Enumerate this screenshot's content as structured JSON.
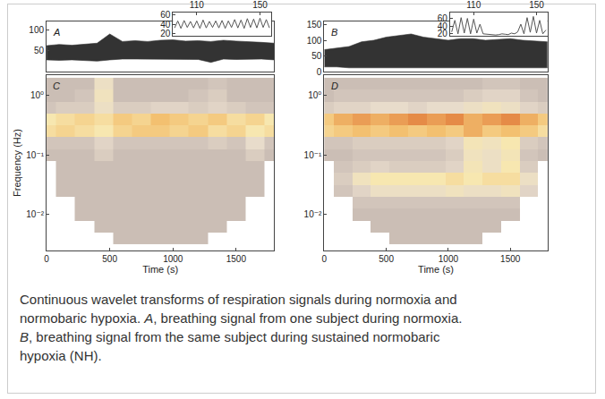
{
  "chart_data": [
    {
      "panel": "A",
      "type": "band",
      "x": [
        0,
        100,
        200,
        300,
        400,
        500,
        600,
        700,
        800,
        900,
        1000,
        1100,
        1200,
        1300,
        1400,
        1500,
        1600,
        1700,
        1800
      ],
      "series": [
        {
          "color": "#333333",
          "values": [
            28,
            27,
            28,
            26,
            25,
            28,
            30,
            30,
            30,
            29,
            30,
            30,
            29,
            22,
            30,
            29,
            30,
            30,
            28
          ]
        },
        {
          "color": "#333333",
          "values": [
            62,
            65,
            63,
            66,
            68,
            90,
            72,
            74,
            72,
            75,
            76,
            73,
            74,
            72,
            75,
            73,
            72,
            70,
            68
          ]
        }
      ],
      "xlim": [
        0,
        1800
      ],
      "ylim": [
        0,
        120
      ],
      "yticks": [
        50,
        100
      ],
      "tick_labels": "y",
      "inset": {
        "type": "line",
        "x": [
          96,
          98,
          100,
          102,
          104,
          106,
          108,
          110,
          112,
          114,
          116,
          118,
          120,
          122,
          124,
          126,
          128,
          130,
          132,
          134,
          136,
          138,
          140,
          142,
          144,
          146,
          148,
          150,
          152,
          154,
          156
        ],
        "values": [
          32,
          47,
          31,
          48,
          33,
          46,
          32,
          47,
          31,
          49,
          32,
          46,
          33,
          47,
          32,
          48,
          31,
          47,
          33,
          50,
          32,
          49,
          31,
          52,
          33,
          51,
          32,
          53,
          33,
          50,
          32
        ],
        "color": "#555555",
        "xlim": [
          95,
          157
        ],
        "ylim": [
          15,
          65
        ],
        "xticks": [
          110,
          150
        ],
        "yticks": [
          20,
          40,
          60
        ]
      }
    },
    {
      "panel": "B",
      "type": "band",
      "x": [
        0,
        100,
        200,
        300,
        400,
        500,
        600,
        700,
        800,
        900,
        1000,
        1100,
        1200,
        1300,
        1400,
        1500,
        1600,
        1700,
        1800
      ],
      "series": [
        {
          "color": "#333333",
          "values": [
            15,
            15,
            12,
            12,
            12,
            10,
            10,
            12,
            10,
            10,
            10,
            12,
            10,
            10,
            10,
            10,
            10,
            12,
            12
          ]
        },
        {
          "color": "#333333",
          "values": [
            70,
            75,
            80,
            95,
            100,
            110,
            115,
            120,
            110,
            105,
            100,
            105,
            105,
            100,
            102,
            105,
            100,
            98,
            95
          ]
        }
      ],
      "xlim": [
        0,
        1800
      ],
      "ylim": [
        0,
        160
      ],
      "yticks": [
        0,
        50,
        100,
        150
      ],
      "tick_labels": "y",
      "inset": {
        "type": "line",
        "x": [
          96,
          98,
          100,
          102,
          104,
          106,
          108,
          110,
          112,
          114,
          116,
          118,
          120,
          122,
          124,
          126,
          128,
          130,
          132,
          134,
          136,
          138,
          140,
          142,
          144,
          146,
          148,
          150,
          152,
          154,
          156
        ],
        "values": [
          25,
          55,
          20,
          62,
          22,
          60,
          20,
          58,
          22,
          45,
          20,
          19,
          18,
          18,
          17,
          18,
          20,
          19,
          18,
          22,
          20,
          25,
          45,
          20,
          62,
          24,
          65,
          22,
          55,
          20,
          30
        ],
        "color": "#555555",
        "xlim": [
          95,
          157
        ],
        "ylim": [
          15,
          75
        ],
        "xticks": [
          110,
          150
        ],
        "yticks": [
          20,
          40,
          60
        ]
      }
    },
    {
      "panel": "C",
      "type": "heatmap",
      "log": "y",
      "x": [
        0,
        150,
        300,
        450,
        600,
        750,
        900,
        1050,
        1200,
        1350,
        1500,
        1650,
        1800
      ],
      "y": [
        1.58,
        1,
        0.63,
        0.4,
        0.25,
        0.16,
        0.1,
        0.063,
        0.04,
        0.025,
        0.016,
        0.01,
        0.0063,
        0.004
      ],
      "z": [
        [
          0.05,
          0.05,
          0.05,
          0.3,
          0.05,
          0.05,
          0.05,
          0.05,
          0.05,
          0.1,
          0.05,
          0.05,
          0.05
        ],
        [
          0.05,
          0.05,
          0.1,
          0.35,
          0.05,
          0.05,
          0.05,
          0.05,
          0.1,
          0.15,
          0.05,
          0.05,
          0.05
        ],
        [
          0.1,
          0.15,
          0.15,
          0.3,
          0.15,
          0.15,
          0.2,
          0.2,
          0.15,
          0.2,
          0.15,
          0.1,
          0.1
        ],
        [
          0.45,
          0.5,
          0.55,
          0.5,
          0.6,
          0.55,
          0.65,
          0.6,
          0.55,
          0.6,
          0.5,
          0.55,
          0.45
        ],
        [
          0.5,
          0.55,
          0.5,
          0.45,
          0.55,
          0.6,
          0.6,
          0.55,
          0.6,
          0.5,
          0.55,
          0.45,
          0.5
        ],
        [
          0.1,
          0.1,
          0.1,
          0.2,
          0.1,
          0.1,
          0.1,
          0.1,
          0.1,
          0.15,
          0.1,
          0.25,
          0.1
        ],
        [
          0.05,
          0.05,
          0.05,
          0.15,
          0.05,
          0.05,
          0.05,
          0.05,
          0.05,
          0.05,
          0.05,
          0.15,
          0.05
        ],
        [
          null,
          0.05,
          0.05,
          0.05,
          0.05,
          0.05,
          0.05,
          0.05,
          0.05,
          0.05,
          0.05,
          0.05,
          null
        ],
        [
          null,
          0.05,
          0.05,
          0.05,
          0.05,
          0.05,
          0.05,
          0.05,
          0.05,
          0.05,
          0.05,
          0.05,
          null
        ],
        [
          null,
          0.05,
          0.05,
          0.05,
          0.05,
          0.05,
          0.05,
          0.05,
          0.05,
          0.05,
          0.05,
          0.05,
          null
        ],
        [
          null,
          null,
          0.05,
          0.05,
          0.05,
          0.05,
          0.05,
          0.05,
          0.05,
          0.05,
          0.05,
          null,
          null
        ],
        [
          null,
          null,
          0.05,
          0.05,
          0.05,
          0.05,
          0.05,
          0.05,
          0.05,
          0.05,
          0.05,
          null,
          null
        ],
        [
          null,
          null,
          null,
          0.05,
          0.05,
          0.05,
          0.05,
          0.05,
          0.05,
          0.05,
          null,
          null,
          null
        ],
        [
          null,
          null,
          null,
          null,
          0.05,
          0.05,
          0.05,
          0.05,
          0.05,
          null,
          null,
          null,
          null
        ]
      ],
      "zlim": [
        0,
        1
      ],
      "xlim": [
        0,
        1800
      ],
      "ylim": [
        0.0025,
        2.2
      ],
      "xticks": [
        0,
        500,
        1000,
        1500
      ],
      "yticks": [
        {
          "value": 1,
          "label": "10⁰"
        },
        {
          "value": 0.1,
          "label": "10⁻¹"
        },
        {
          "value": 0.01,
          "label": "10⁻²"
        }
      ],
      "xlabel": "Time (s)",
      "ylabel": "Frequency (Hz)"
    },
    {
      "panel": "D",
      "type": "heatmap",
      "log": "y",
      "x": [
        0,
        150,
        300,
        450,
        600,
        750,
        900,
        1050,
        1200,
        1350,
        1500,
        1650,
        1800
      ],
      "y": [
        1.58,
        1,
        0.63,
        0.4,
        0.25,
        0.16,
        0.1,
        0.063,
        0.04,
        0.025,
        0.016,
        0.01,
        0.0063,
        0.004
      ],
      "z": [
        [
          0.05,
          0.05,
          0.05,
          0.05,
          0.05,
          0.05,
          0.05,
          0.05,
          0.05,
          0.1,
          0.1,
          0.05,
          0.05
        ],
        [
          0.05,
          0.1,
          0.1,
          0.1,
          0.1,
          0.1,
          0.1,
          0.1,
          0.15,
          0.2,
          0.2,
          0.1,
          0.05
        ],
        [
          0.15,
          0.2,
          0.2,
          0.25,
          0.25,
          0.2,
          0.25,
          0.25,
          0.3,
          0.35,
          0.3,
          0.2,
          0.15
        ],
        [
          0.6,
          0.7,
          0.75,
          0.7,
          0.75,
          0.8,
          0.75,
          0.8,
          0.7,
          0.75,
          0.8,
          0.7,
          0.6
        ],
        [
          0.55,
          0.6,
          0.65,
          0.6,
          0.65,
          0.6,
          0.65,
          0.6,
          0.7,
          0.6,
          0.65,
          0.6,
          0.5
        ],
        [
          0.1,
          0.1,
          0.15,
          0.15,
          0.15,
          0.15,
          0.15,
          0.2,
          0.4,
          0.35,
          0.45,
          0.15,
          0.1
        ],
        [
          0.05,
          0.05,
          0.1,
          0.1,
          0.1,
          0.1,
          0.1,
          0.15,
          0.35,
          0.3,
          0.4,
          0.1,
          0.05
        ],
        [
          null,
          0.1,
          0.15,
          0.2,
          0.15,
          0.15,
          0.15,
          0.2,
          0.4,
          0.3,
          0.45,
          0.15,
          null
        ],
        [
          null,
          0.15,
          0.35,
          0.45,
          0.45,
          0.45,
          0.45,
          0.5,
          0.45,
          0.5,
          0.5,
          0.3,
          null
        ],
        [
          null,
          0.1,
          0.2,
          0.3,
          0.3,
          0.3,
          0.3,
          0.35,
          0.3,
          0.3,
          0.35,
          0.2,
          null
        ],
        [
          null,
          null,
          0.1,
          0.1,
          0.1,
          0.1,
          0.1,
          0.1,
          0.1,
          0.1,
          0.1,
          null,
          null
        ],
        [
          null,
          null,
          0.05,
          0.05,
          0.05,
          0.05,
          0.05,
          0.05,
          0.05,
          0.05,
          0.05,
          null,
          null
        ],
        [
          null,
          null,
          null,
          0.05,
          0.05,
          0.05,
          0.05,
          0.05,
          0.05,
          0.05,
          null,
          null,
          null
        ],
        [
          null,
          null,
          null,
          null,
          0.05,
          0.05,
          0.05,
          0.05,
          0.05,
          null,
          null,
          null,
          null
        ]
      ],
      "zlim": [
        0,
        1
      ],
      "xlim": [
        0,
        1800
      ],
      "ylim": [
        0.0025,
        2.2
      ],
      "xticks": [
        0,
        500,
        1000,
        1500
      ],
      "yticks": [
        {
          "value": 1,
          "label": "10⁰"
        },
        {
          "value": 0.1,
          "label": "10⁻¹"
        },
        {
          "value": 0.01,
          "label": "10⁻²"
        }
      ],
      "xlabel": "Time (s)"
    }
  ],
  "caption": {
    "parts": [
      {
        "text": "Continuous wavelet transforms of respiration signals during normoxia and normobaric hypoxia. "
      },
      {
        "text": "A",
        "italic": true
      },
      {
        "text": ", breathing signal from one subject during normoxia. "
      },
      {
        "text": "B",
        "italic": true
      },
      {
        "text": ", breathing signal from the same subject during sustained normobaric hypoxia (NH)."
      }
    ]
  }
}
